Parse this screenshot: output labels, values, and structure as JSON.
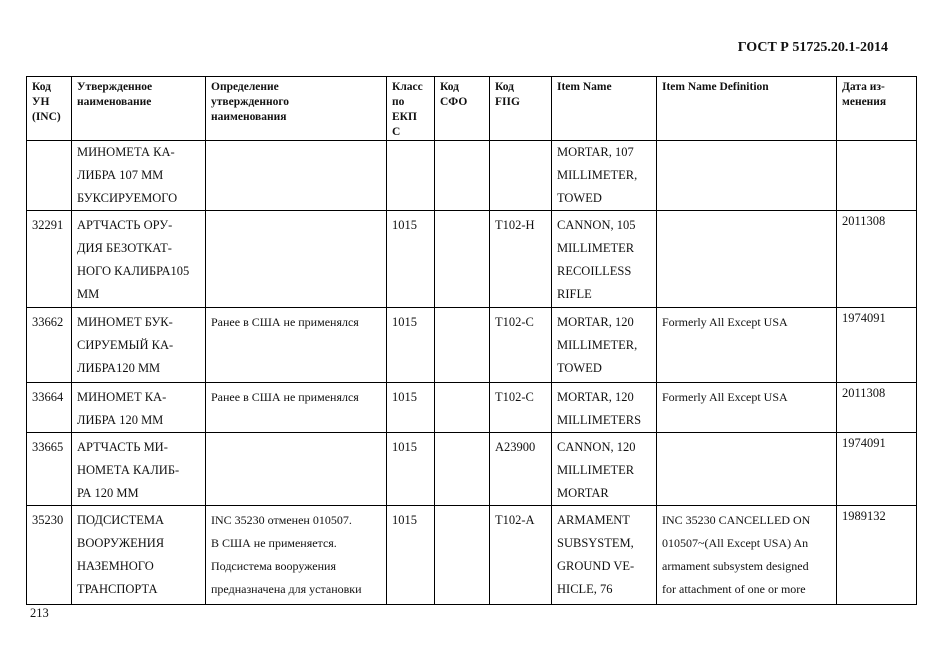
{
  "header": {
    "title": "ГОСТ Р 51725.20.1-2014"
  },
  "table": {
    "columns": [
      "Код\nУН\n(INC)",
      "Утвержденное\nнаименование",
      "Определение\nутвержденного\nнаименования",
      "Класс\nпо\nЕКП\nС",
      "Код\nСФО",
      "Код\nFIIG",
      "Item Name",
      "Item Name Definition",
      "Дата из-\nменения"
    ],
    "rows": [
      {
        "inc": "",
        "name": "МИНОМЕТА КА-\nЛИБРА 107 ММ\nБУКСИРУЕМОГО",
        "definition": "",
        "class": "",
        "sfo": "",
        "fiig": "",
        "item_name": "MORTAR, 107\nMILLIMETER,\nTOWED",
        "item_def": "",
        "date": ""
      },
      {
        "inc": "32291",
        "name": "АРТЧАСТЬ ОРУ-\nДИЯ БЕЗОТКАТ-\nНОГО КАЛИБРА105\nММ",
        "definition": "",
        "class": "1015",
        "sfo": "",
        "fiig": "T102-H",
        "item_name": "CANNON, 105\nMILLIMETER\nRECOILLESS\nRIFLE",
        "item_def": "",
        "date": "2011308"
      },
      {
        "inc": "33662",
        "name": "МИНОМЕТ БУК-\nСИРУЕМЫЙ КА-\nЛИБРА120 ММ",
        "definition": "Ранее в США не применялся",
        "class": "1015",
        "sfo": "",
        "fiig": "T102-C",
        "item_name": "MORTAR, 120\nMILLIMETER,\nTOWED",
        "item_def": "Formerly All Except USA",
        "date": "1974091"
      },
      {
        "inc": "33664",
        "name": "МИНОМЕТ КА-\nЛИБРА 120 ММ",
        "definition": "Ранее в США не применялся",
        "class": "1015",
        "sfo": "",
        "fiig": "T102-C",
        "item_name": "MORTAR, 120\nMILLIMETERS",
        "item_def": "Formerly All Except USA",
        "date": "2011308"
      },
      {
        "inc": "33665",
        "name": "АРТЧАСТЬ МИ-\nНОМЕТА КАЛИБ-\nРА 120 ММ",
        "definition": "",
        "class": "1015",
        "sfo": "",
        "fiig": "A23900",
        "item_name": "CANNON, 120\nMILLIMETER\nMORTAR",
        "item_def": "",
        "date": "1974091"
      },
      {
        "inc": "35230",
        "name": "ПОДСИСТЕМА\nВООРУЖЕНИЯ\nНАЗЕМНОГО\nТРАНСПОРТА",
        "definition": "INC 35230 отменен 010507.\nВ США не применяется.\nПодсистема вооружения\nпредназначена для установки",
        "class": "1015",
        "sfo": "",
        "fiig": "T102-A",
        "item_name": "ARMAMENT\nSUBSYSTEM,\nGROUND VE-\nHICLE, 76",
        "item_def": "INC 35230 CANCELLED ON\n010507~(All Except USA) An\narmament subsystem designed\nfor attachment of one or more",
        "date": "1989132"
      }
    ]
  },
  "footer": {
    "page_number": "213"
  }
}
